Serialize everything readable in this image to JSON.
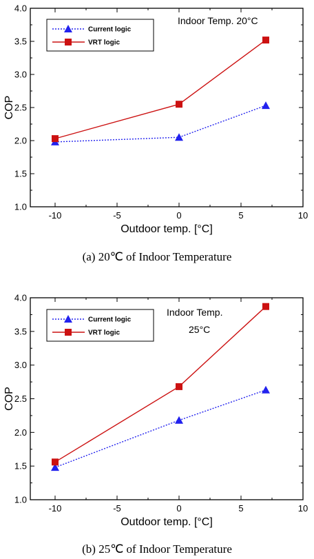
{
  "chart_data": [
    {
      "type": "line",
      "caption": "(a)  20℃  of  Indoor  Temperature",
      "annotation": [
        "Indoor Temp. 20°C"
      ],
      "xlabel": "Outdoor temp. [°C]",
      "ylabel": "COP",
      "xlim": [
        -12,
        10
      ],
      "ylim": [
        1.0,
        4.0
      ],
      "xticks": [
        -10,
        -5,
        0,
        5,
        10
      ],
      "yticks": [
        1.0,
        1.5,
        2.0,
        2.5,
        3.0,
        3.5,
        4.0
      ],
      "ytick_labels": [
        "1.0",
        "1.5",
        "2.0",
        "2.5",
        "3.0",
        "3.5",
        "4.0"
      ],
      "legend_position": "top-left",
      "series": [
        {
          "name": "Current logic",
          "color": "#2222ee",
          "marker": "triangle",
          "dash": true,
          "x": [
            -10,
            0,
            7
          ],
          "y": [
            1.98,
            2.05,
            2.53
          ]
        },
        {
          "name": "VRT logic",
          "color": "#cc1111",
          "marker": "square",
          "dash": false,
          "x": [
            -10,
            0,
            7
          ],
          "y": [
            2.03,
            2.55,
            3.52
          ]
        }
      ]
    },
    {
      "type": "line",
      "caption": "(b)  25℃  of  Indoor  Temperature",
      "annotation": [
        "Indoor Temp.",
        "25°C"
      ],
      "xlabel": "Outdoor temp. [°C]",
      "ylabel": "COP",
      "xlim": [
        -12,
        10
      ],
      "ylim": [
        1.0,
        4.0
      ],
      "xticks": [
        -10,
        -5,
        0,
        5,
        10
      ],
      "yticks": [
        1.0,
        1.5,
        2.0,
        2.5,
        3.0,
        3.5,
        4.0
      ],
      "ytick_labels": [
        "1.0",
        "1.5",
        "2.0",
        "2.5",
        "3.0",
        "3.5",
        "4.0"
      ],
      "legend_position": "top-left",
      "series": [
        {
          "name": "Current logic",
          "color": "#2222ee",
          "marker": "triangle",
          "dash": true,
          "x": [
            -10,
            0,
            7
          ],
          "y": [
            1.48,
            2.18,
            2.63
          ]
        },
        {
          "name": "VRT logic",
          "color": "#cc1111",
          "marker": "square",
          "dash": false,
          "x": [
            -10,
            0,
            7
          ],
          "y": [
            1.56,
            2.68,
            3.87
          ]
        }
      ]
    }
  ]
}
